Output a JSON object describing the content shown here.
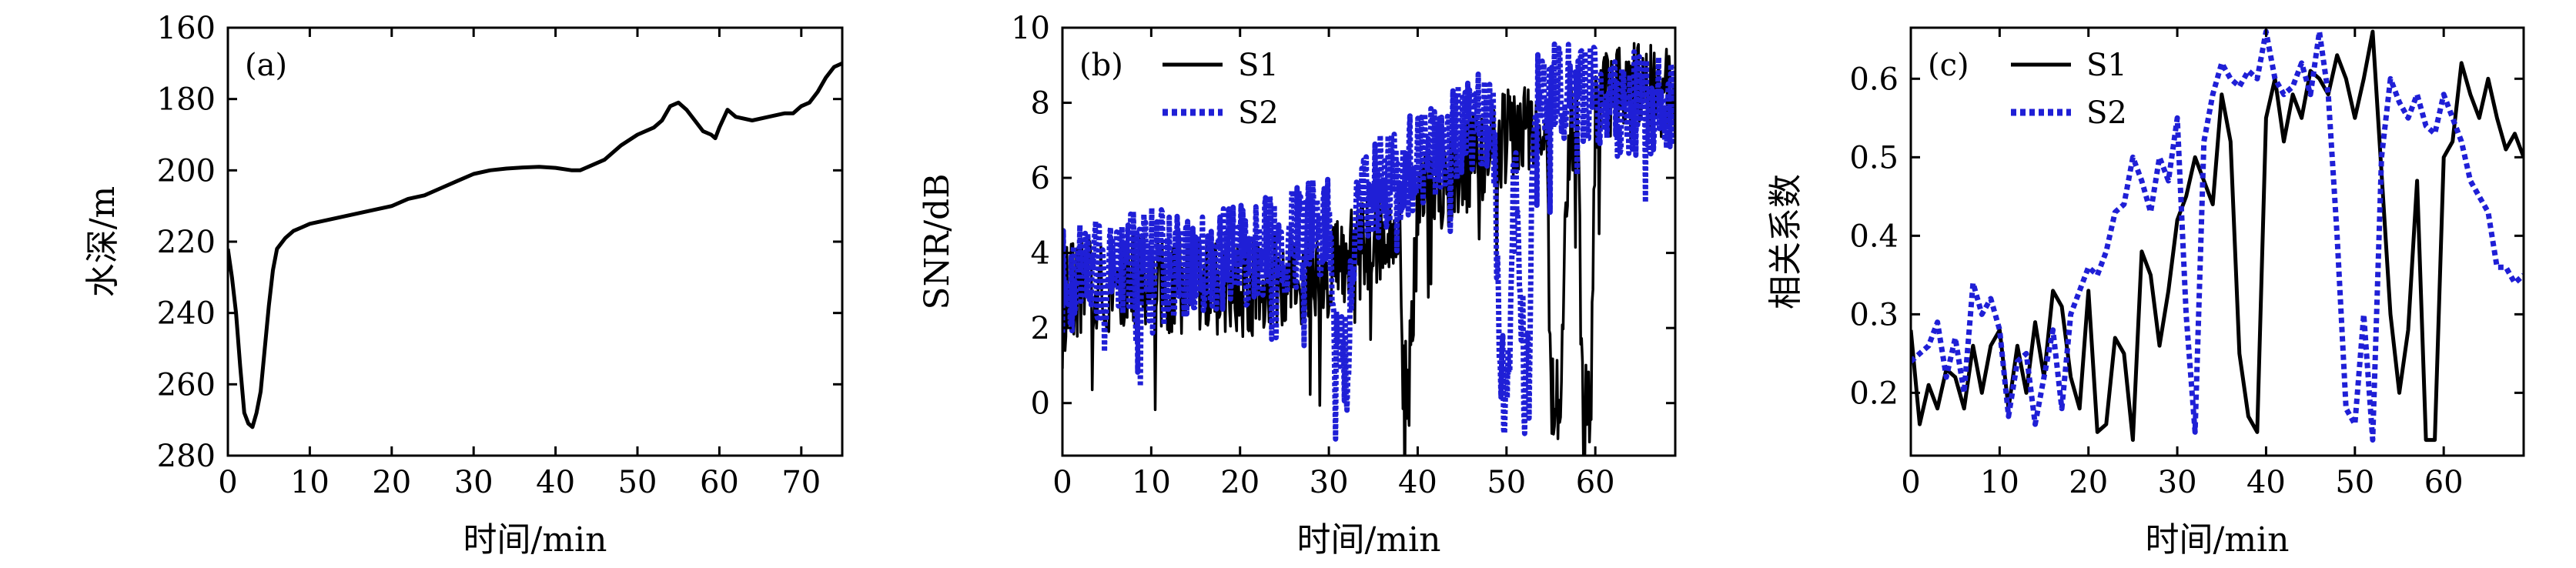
{
  "chart_data": [
    {
      "type": "line",
      "panel_label": "(a)",
      "xlabel": "时间/min",
      "ylabel": "水深/m",
      "xlim": [
        0,
        75
      ],
      "ylim": [
        280,
        160
      ],
      "y_inverted": true,
      "xticks": [
        "0",
        "10",
        "20",
        "30",
        "40",
        "50",
        "60",
        "70"
      ],
      "yticks": [
        "160",
        "180",
        "200",
        "220",
        "240",
        "260",
        "280"
      ],
      "grid": false,
      "legend": null,
      "series": [
        {
          "color": "#000000",
          "style": "solid",
          "x": [
            0,
            0.5,
            1,
            1.5,
            2,
            2.5,
            3,
            3.5,
            4,
            4.5,
            5,
            5.5,
            6,
            7,
            8,
            9,
            10,
            12,
            14,
            16,
            18,
            20,
            22,
            24,
            26,
            28,
            30,
            32,
            34,
            36,
            38,
            40,
            42,
            43,
            44,
            46,
            48,
            50,
            52,
            53,
            54,
            55,
            56,
            57,
            58,
            59,
            59.5,
            60,
            61,
            62,
            64,
            66,
            68,
            69,
            70,
            71,
            72,
            73,
            74,
            75
          ],
          "y": [
            222,
            230,
            240,
            255,
            268,
            271,
            272,
            268,
            262,
            250,
            238,
            228,
            222,
            219,
            217,
            216,
            215,
            214,
            213,
            212,
            211,
            210,
            208,
            207,
            205,
            203,
            201,
            200,
            199.5,
            199.2,
            199,
            199.3,
            200,
            200,
            199,
            197,
            193,
            190,
            188,
            186,
            182,
            181,
            183,
            186,
            189,
            190,
            191,
            188,
            183,
            185,
            186,
            185,
            184,
            184,
            182,
            181,
            178,
            174,
            171,
            170
          ]
        }
      ]
    },
    {
      "type": "line",
      "panel_label": "(b)",
      "xlabel": "时间/min",
      "ylabel": "SNR/dB",
      "xlim": [
        0,
        69
      ],
      "ylim": [
        -1.4,
        10
      ],
      "xticks": [
        "0",
        "10",
        "20",
        "30",
        "40",
        "50",
        "60"
      ],
      "yticks": [
        "0",
        "2",
        "4",
        "6",
        "8",
        "10"
      ],
      "grid": false,
      "legend": "top-left",
      "noise_amplitude": [
        2.6,
        2.8
      ],
      "series": [
        {
          "name": "S1",
          "color": "#000000",
          "style": "solid",
          "x": [
            0,
            5,
            10,
            15,
            20,
            25,
            30,
            35,
            38,
            38.4,
            39,
            40,
            42,
            45,
            48,
            50,
            53,
            54.5,
            55,
            56,
            57,
            58,
            58.5,
            59.5,
            60,
            63,
            66,
            69
          ],
          "y": [
            3,
            3.2,
            3.2,
            3.1,
            3.0,
            3.3,
            3.5,
            4.3,
            4.8,
            0.5,
            0.5,
            5.4,
            5.8,
            6.2,
            6.7,
            7.1,
            7.3,
            7.5,
            0.0,
            0.0,
            7.2,
            7.8,
            0.0,
            0.0,
            8.0,
            8.3,
            8.3,
            8.2
          ]
        },
        {
          "name": "S2",
          "color": "#1f1fd6",
          "style": "dotted",
          "x": [
            0,
            5,
            10,
            15,
            20,
            25,
            28,
            30,
            31,
            32,
            33,
            35,
            40,
            45,
            48.5,
            49.3,
            50.2,
            51,
            52,
            52.6,
            53,
            55,
            60,
            64,
            69
          ],
          "y": [
            3.2,
            3.6,
            3.8,
            3.6,
            3.9,
            4.3,
            4.6,
            4.9,
            1.5,
            1.0,
            5.3,
            5.6,
            6.6,
            7.3,
            7.5,
            0.5,
            0.5,
            7.7,
            0.5,
            0.5,
            8.2,
            8.4,
            8.2,
            8.0,
            7.8
          ]
        }
      ]
    },
    {
      "type": "line",
      "panel_label": "(c)",
      "xlabel": "时间/min",
      "ylabel": "相关系数",
      "xlim": [
        0,
        69
      ],
      "ylim": [
        0.12,
        0.665
      ],
      "xticks": [
        "0",
        "10",
        "20",
        "30",
        "40",
        "50",
        "60"
      ],
      "yticks": [
        "0.2",
        "0.3",
        "0.4",
        "0.5",
        "0.6"
      ],
      "grid": false,
      "legend": "top-left",
      "series": [
        {
          "name": "S1",
          "color": "#000000",
          "style": "solid",
          "x": [
            0,
            1,
            2,
            3,
            4,
            5,
            6,
            7,
            8,
            9,
            10,
            11,
            12,
            13,
            14,
            15,
            16,
            17,
            18,
            19,
            20,
            21,
            22,
            23,
            24,
            25,
            26,
            27,
            28,
            29,
            30,
            31,
            32,
            33,
            34,
            35,
            36,
            37,
            38,
            39,
            40,
            41,
            42,
            43,
            44,
            45,
            46,
            47,
            48,
            49,
            50,
            51,
            52,
            53,
            54,
            55,
            56,
            57,
            58,
            59,
            60,
            61,
            62,
            63,
            64,
            65,
            66,
            67,
            68,
            69
          ],
          "y": [
            0.28,
            0.16,
            0.21,
            0.18,
            0.23,
            0.22,
            0.18,
            0.26,
            0.2,
            0.26,
            0.28,
            0.18,
            0.26,
            0.2,
            0.29,
            0.22,
            0.33,
            0.31,
            0.22,
            0.18,
            0.33,
            0.15,
            0.16,
            0.27,
            0.25,
            0.14,
            0.38,
            0.35,
            0.26,
            0.33,
            0.42,
            0.45,
            0.5,
            0.47,
            0.44,
            0.58,
            0.52,
            0.25,
            0.17,
            0.15,
            0.55,
            0.6,
            0.52,
            0.58,
            0.55,
            0.61,
            0.6,
            0.58,
            0.63,
            0.6,
            0.55,
            0.6,
            0.66,
            0.48,
            0.3,
            0.2,
            0.28,
            0.47,
            0.14,
            0.14,
            0.5,
            0.52,
            0.62,
            0.58,
            0.55,
            0.6,
            0.55,
            0.51,
            0.53,
            0.5
          ]
        },
        {
          "name": "S2",
          "color": "#1f1fd6",
          "style": "dotted",
          "x": [
            0,
            1,
            2,
            3,
            4,
            5,
            6,
            7,
            8,
            9,
            10,
            11,
            12,
            13,
            14,
            15,
            16,
            17,
            18,
            19,
            20,
            21,
            22,
            23,
            24,
            25,
            26,
            27,
            28,
            29,
            30,
            31,
            32,
            33,
            34,
            35,
            36,
            37,
            38,
            39,
            40,
            41,
            42,
            43,
            44,
            45,
            46,
            47,
            48,
            49,
            50,
            51,
            52,
            53,
            54,
            55,
            56,
            57,
            58,
            59,
            60,
            61,
            62,
            63,
            64,
            65,
            66,
            67,
            68,
            69
          ],
          "y": [
            0.24,
            0.25,
            0.26,
            0.29,
            0.22,
            0.27,
            0.2,
            0.34,
            0.3,
            0.32,
            0.28,
            0.17,
            0.24,
            0.25,
            0.16,
            0.22,
            0.28,
            0.18,
            0.3,
            0.33,
            0.36,
            0.35,
            0.38,
            0.43,
            0.44,
            0.5,
            0.47,
            0.43,
            0.5,
            0.47,
            0.55,
            0.3,
            0.15,
            0.52,
            0.58,
            0.62,
            0.6,
            0.59,
            0.61,
            0.6,
            0.66,
            0.6,
            0.58,
            0.59,
            0.62,
            0.58,
            0.66,
            0.58,
            0.4,
            0.18,
            0.16,
            0.3,
            0.14,
            0.5,
            0.6,
            0.57,
            0.55,
            0.58,
            0.54,
            0.53,
            0.58,
            0.55,
            0.52,
            0.47,
            0.45,
            0.43,
            0.36,
            0.36,
            0.34,
            0.35
          ]
        }
      ]
    }
  ]
}
